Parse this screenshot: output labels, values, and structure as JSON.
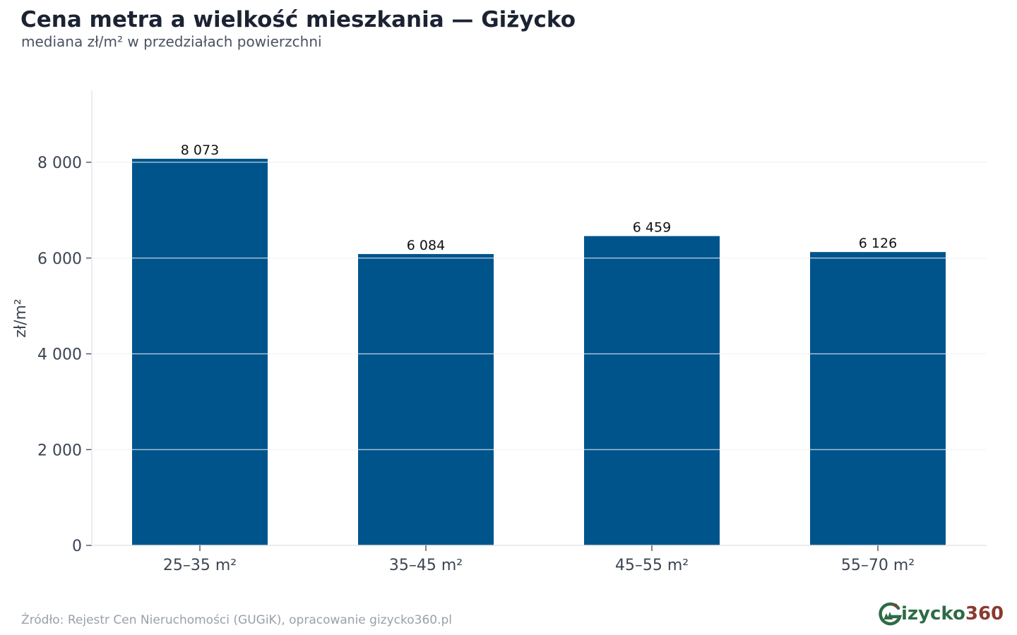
{
  "title": "Cena metra a wielkość mieszkania — Giżycko",
  "subtitle": "mediana zł/m² w przedziałach powierzchni",
  "source": "Źródło: Rejestr Cen Nieruchomości (GUGiK), opracowanie gizycko360.pl",
  "logo": {
    "word": "izycko",
    "number": "360"
  },
  "colors": {
    "bar": "#00548c",
    "grid": "#e3e5e9",
    "axis_text": "#3c4453",
    "label_text": "#111111"
  },
  "chart_data": {
    "type": "bar",
    "title": "Cena metra a wielkość mieszkania — Giżycko",
    "subtitle": "mediana zł/m² w przedziałach powierzchni",
    "xlabel": "",
    "ylabel": "zł/m²",
    "categories": [
      "25–35 m²",
      "35–45 m²",
      "45–55 m²",
      "55–70 m²"
    ],
    "values": [
      8073,
      6084,
      6459,
      6126
    ],
    "value_labels": [
      "8 073",
      "6 084",
      "6 459",
      "6 126"
    ],
    "ylim": [
      0,
      9500
    ],
    "yticks": [
      0,
      2000,
      4000,
      6000,
      8000
    ],
    "ytick_labels": [
      "0",
      "2 000",
      "4 000",
      "6 000",
      "8 000"
    ],
    "grid": true,
    "legend": "none"
  }
}
